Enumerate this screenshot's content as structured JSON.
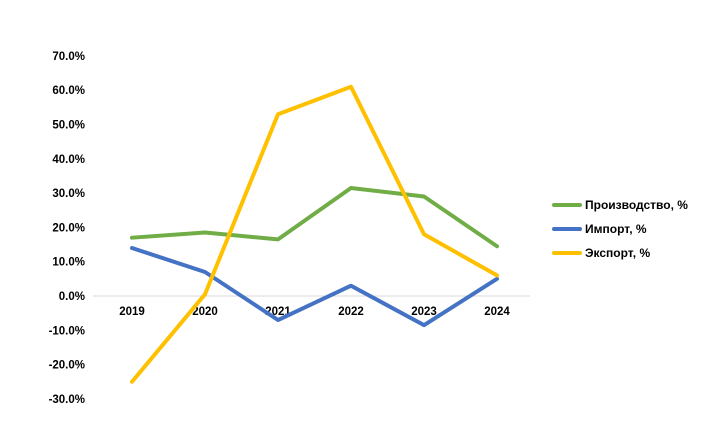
{
  "chart_data": {
    "type": "line",
    "title": "",
    "xlabel": "",
    "ylabel": "",
    "categories": [
      "2019",
      "2020",
      "2021",
      "2022",
      "2023",
      "2024"
    ],
    "series": [
      {
        "name": "Производство, %",
        "color": "#70AD47",
        "values": [
          17,
          18.5,
          16.5,
          31.5,
          29,
          14.5
        ]
      },
      {
        "name": "Импорт, %",
        "color": "#4472C4",
        "values": [
          14,
          7,
          -7,
          3,
          -8.5,
          5
        ]
      },
      {
        "name": "Экспорт, %",
        "color": "#FFC000",
        "values": [
          -25,
          0.5,
          53,
          61,
          18,
          6
        ]
      }
    ],
    "ylim": [
      -30,
      70
    ],
    "y_axis": {
      "ticks": [
        {
          "value": 70,
          "label": "70.0%"
        },
        {
          "value": 60,
          "label": "60.0%"
        },
        {
          "value": 50,
          "label": "50.0%"
        },
        {
          "value": 40,
          "label": "40.0%"
        },
        {
          "value": 30,
          "label": "30.0%"
        },
        {
          "value": 20,
          "label": "20.0%"
        },
        {
          "value": 10,
          "label": "10.0%"
        },
        {
          "value": 0,
          "label": "0.0%"
        },
        {
          "value": -10,
          "label": "-10.0%"
        },
        {
          "value": -20,
          "label": "-20.0%"
        },
        {
          "value": -30,
          "label": "-30.0%"
        }
      ]
    },
    "grid": "zero-baseline-only",
    "legend_position": "right",
    "axis_color": "#D9D9D9",
    "label_color": "#000000",
    "background": "#FFFFFF",
    "line_width": 4
  }
}
